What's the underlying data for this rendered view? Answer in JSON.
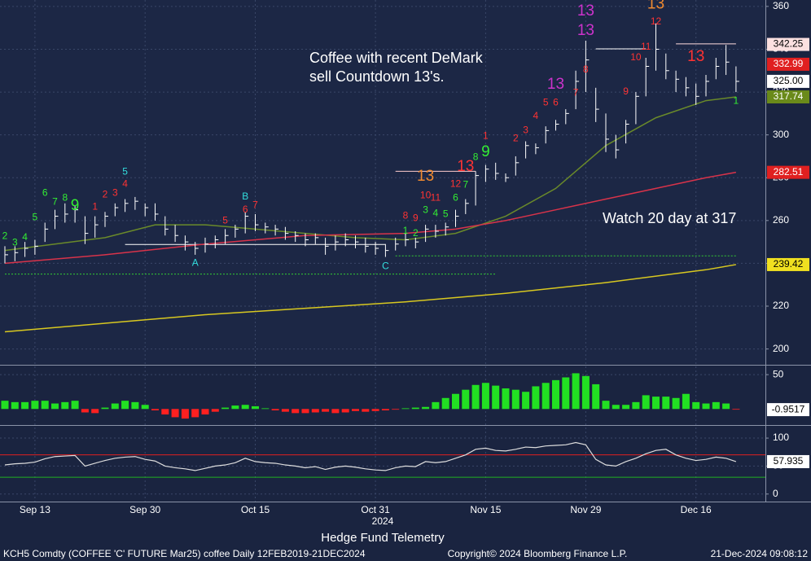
{
  "chart_data": [
    {
      "type": "ohlc",
      "color": "#ffffff",
      "ylim": [
        193,
        363
      ],
      "yticks": [
        200,
        220,
        240,
        260,
        280,
        300,
        320,
        340,
        360
      ],
      "grid": true,
      "categories": [
        null,
        null,
        null,
        "Sep 13",
        null,
        null,
        null,
        null,
        null,
        null,
        null,
        null,
        null,
        null,
        "Sep 30",
        null,
        null,
        null,
        null,
        null,
        null,
        null,
        null,
        null,
        null,
        "Oct 15",
        null,
        null,
        null,
        null,
        null,
        null,
        null,
        null,
        null,
        null,
        null,
        "Oct 31",
        null,
        null,
        null,
        null,
        null,
        null,
        null,
        null,
        null,
        null,
        "Nov 15",
        null,
        null,
        null,
        null,
        null,
        null,
        null,
        null,
        null,
        "Nov 29",
        null,
        null,
        null,
        null,
        null,
        null,
        null,
        null,
        null,
        null,
        "Dec 16",
        null,
        null,
        null,
        null
      ],
      "year_label": "2024",
      "high": [
        248,
        248,
        250,
        251,
        259,
        265,
        268,
        267,
        262,
        262,
        264,
        268,
        270,
        271,
        268,
        268,
        262,
        258,
        253,
        250,
        252,
        253,
        256,
        258,
        264,
        263,
        259,
        258,
        257,
        255,
        254,
        254,
        252,
        253,
        254,
        253,
        252,
        250,
        249,
        252,
        254,
        252,
        258,
        258,
        259,
        265,
        270,
        283,
        286,
        287,
        282,
        290,
        297,
        296,
        304,
        307,
        312,
        330,
        344,
        322,
        310,
        300,
        307,
        320,
        336,
        352,
        338,
        330,
        327,
        324,
        328,
        336,
        342,
        332
      ],
      "low": [
        240,
        241,
        243,
        244,
        250,
        256,
        259,
        259,
        249,
        252,
        257,
        262,
        264,
        265,
        262,
        260,
        253,
        250,
        246,
        244,
        245,
        247,
        249,
        252,
        254,
        255,
        254,
        253,
        251,
        250,
        248,
        249,
        244,
        246,
        248,
        247,
        245,
        244,
        243,
        246,
        248,
        247,
        250,
        252,
        253,
        257,
        263,
        267,
        278,
        279,
        278,
        281,
        289,
        291,
        296,
        302,
        305,
        312,
        320,
        306,
        292,
        289,
        296,
        305,
        318,
        330,
        326,
        320,
        318,
        314,
        318,
        326,
        328,
        320
      ],
      "close": [
        244,
        245,
        247,
        248,
        256,
        262,
        263,
        265,
        254,
        258,
        262,
        266,
        268,
        269,
        266,
        263,
        256,
        253,
        250,
        247,
        249,
        251,
        253,
        256,
        262,
        258,
        257,
        256,
        254,
        253,
        251,
        252,
        248,
        250,
        251,
        250,
        248,
        247,
        246,
        249,
        251,
        250,
        256,
        255,
        257,
        262,
        268,
        281,
        284,
        282,
        280,
        287,
        295,
        294,
        302,
        305,
        310,
        325,
        335,
        312,
        298,
        293,
        305,
        318,
        332,
        340,
        330,
        326,
        322,
        318,
        325,
        332,
        334,
        325
      ],
      "series": [
        {
          "color": "#6a8a2a",
          "x": [
            0,
            5,
            10,
            15,
            20,
            25,
            30,
            35,
            40,
            45,
            50,
            55,
            60,
            65,
            70,
            73
          ],
          "values": [
            246,
            249,
            252,
            258,
            258,
            256,
            254,
            252,
            251,
            254,
            262,
            275,
            295,
            308,
            316,
            317.74
          ]
        },
        {
          "color": "#d8334a",
          "x": [
            0,
            10,
            20,
            30,
            40,
            45,
            50,
            55,
            60,
            65,
            70,
            73
          ],
          "values": [
            240,
            244,
            249,
            253,
            254,
            256,
            260,
            265,
            270,
            275,
            280,
            282.51
          ]
        },
        {
          "color": "#d8c820",
          "x": [
            0,
            10,
            20,
            30,
            40,
            50,
            60,
            70,
            73
          ],
          "values": [
            208,
            212,
            216,
            219,
            222,
            226,
            231,
            237,
            239.42
          ]
        }
      ],
      "levels": [
        {
          "value": 342.5,
          "from": 67,
          "to": 73,
          "color": "#ffdddd",
          "dash": false
        },
        {
          "value": 340.2,
          "from": 59,
          "to": 64,
          "color": "#ffffff",
          "dash": false
        },
        {
          "value": 243.5,
          "from": 39,
          "to": 73,
          "color": "#33cc33",
          "dash": true
        },
        {
          "value": 235,
          "from": 0,
          "to": 49,
          "color": "#33cc33",
          "dash": true
        },
        {
          "value": 248.8,
          "from": 12,
          "to": 38,
          "color": "#ffffff",
          "dash": false
        },
        {
          "value": 283,
          "from": 39,
          "to": 47,
          "color": "#ffcccc",
          "dash": false
        }
      ],
      "td_counts": [
        {
          "text": "2",
          "bar": 0,
          "at": 252.6,
          "color": "#33ee33",
          "big": false
        },
        {
          "text": "3",
          "bar": 1,
          "at": 249.5,
          "color": "#33ee33",
          "big": false
        },
        {
          "text": "4",
          "bar": 2,
          "at": 252,
          "color": "#33ee33",
          "big": false
        },
        {
          "text": "5",
          "bar": 3,
          "at": 261.3,
          "color": "#33ee33",
          "big": false
        },
        {
          "text": "6",
          "bar": 4,
          "at": 272.8,
          "color": "#33ee33",
          "big": false
        },
        {
          "text": "7",
          "bar": 5,
          "at": 268.6,
          "color": "#33ee33",
          "big": false
        },
        {
          "text": "8",
          "bar": 6,
          "at": 270.5,
          "color": "#33ee33",
          "big": false
        },
        {
          "text": "9",
          "bar": 7,
          "at": 266.7,
          "color": "#33ee33",
          "big": true
        },
        {
          "text": "1",
          "bar": 9,
          "at": 266.3,
          "color": "#ff3333",
          "big": false
        },
        {
          "text": "2",
          "bar": 10,
          "at": 272,
          "color": "#ff3333",
          "big": false
        },
        {
          "text": "3",
          "bar": 11,
          "at": 272.8,
          "color": "#ff3333",
          "big": false
        },
        {
          "text": "4",
          "bar": 12,
          "at": 277,
          "color": "#ff3333",
          "big": false
        },
        {
          "text": "5",
          "bar": 12,
          "at": 282.7,
          "color": "#33dddd",
          "big": false
        },
        {
          "text": "A",
          "bar": 19,
          "at": 240,
          "color": "#33dddd",
          "big": false
        },
        {
          "text": "5",
          "bar": 22,
          "at": 259.8,
          "color": "#ff3333",
          "big": false
        },
        {
          "text": "6",
          "bar": 24,
          "at": 265,
          "color": "#ff3333",
          "big": false
        },
        {
          "text": "B",
          "bar": 24,
          "at": 271,
          "color": "#33dddd",
          "big": false
        },
        {
          "text": "7",
          "bar": 25,
          "at": 267,
          "color": "#ff3333",
          "big": false
        },
        {
          "text": "C",
          "bar": 38,
          "at": 238.5,
          "color": "#33dddd",
          "big": false
        },
        {
          "text": "8",
          "bar": 40,
          "at": 262,
          "color": "#ff3333",
          "big": false
        },
        {
          "text": "9",
          "bar": 41,
          "at": 261,
          "color": "#ff3333",
          "big": false
        },
        {
          "text": "10",
          "bar": 42,
          "at": 271.6,
          "color": "#ff3333",
          "big": false
        },
        {
          "text": "11",
          "bar": 43,
          "at": 270.5,
          "color": "#ff3333",
          "big": false
        },
        {
          "text": "13",
          "bar": 42,
          "at": 280.4,
          "color": "#f08a30",
          "big": true
        },
        {
          "text": "12",
          "bar": 45,
          "at": 277,
          "color": "#ff3333",
          "big": false
        },
        {
          "text": "13",
          "bar": 46,
          "at": 285,
          "color": "#ff3333",
          "big": true
        },
        {
          "text": "1",
          "bar": 40,
          "at": 255,
          "color": "#33ee33",
          "big": false
        },
        {
          "text": "2",
          "bar": 41,
          "at": 254,
          "color": "#33ee33",
          "big": false
        },
        {
          "text": "3",
          "bar": 42,
          "at": 264.8,
          "color": "#33ee33",
          "big": false
        },
        {
          "text": "4",
          "bar": 43,
          "at": 263.2,
          "color": "#33ee33",
          "big": false
        },
        {
          "text": "5",
          "bar": 44,
          "at": 262.9,
          "color": "#33ee33",
          "big": false
        },
        {
          "text": "6",
          "bar": 45,
          "at": 270.5,
          "color": "#33ee33",
          "big": false
        },
        {
          "text": "7",
          "bar": 46,
          "at": 276.6,
          "color": "#33ee33",
          "big": false
        },
        {
          "text": "8",
          "bar": 47,
          "at": 289.5,
          "color": "#33ee33",
          "big": false
        },
        {
          "text": "9",
          "bar": 48,
          "at": 291.8,
          "color": "#33ee33",
          "big": true
        },
        {
          "text": "1",
          "bar": 48,
          "at": 299.4,
          "color": "#ff3333",
          "big": false
        },
        {
          "text": "2",
          "bar": 51,
          "at": 298.3,
          "color": "#ff3333",
          "big": false
        },
        {
          "text": "3",
          "bar": 52,
          "at": 302,
          "color": "#ff3333",
          "big": false
        },
        {
          "text": "4",
          "bar": 53,
          "at": 308.6,
          "color": "#ff3333",
          "big": false
        },
        {
          "text": "5",
          "bar": 54,
          "at": 315,
          "color": "#ff3333",
          "big": false
        },
        {
          "text": "6",
          "bar": 55,
          "at": 315,
          "color": "#ff3333",
          "big": false
        },
        {
          "text": "7",
          "bar": 57,
          "at": 319.6,
          "color": "#ff3333",
          "big": false
        },
        {
          "text": "8",
          "bar": 58,
          "at": 330.3,
          "color": "#ff3333",
          "big": false
        },
        {
          "text": "13",
          "bar": 55,
          "at": 323.4,
          "color": "#cc33cc",
          "big": true
        },
        {
          "text": "13",
          "bar": 58,
          "at": 348.6,
          "color": "#cc33cc",
          "big": true
        },
        {
          "text": "13",
          "bar": 58,
          "at": 357.7,
          "color": "#cc33cc",
          "big": true
        },
        {
          "text": "9",
          "bar": 62,
          "at": 320,
          "color": "#ff3333",
          "big": false
        },
        {
          "text": "10",
          "bar": 63,
          "at": 336,
          "color": "#ff3333",
          "big": false
        },
        {
          "text": "11",
          "bar": 64,
          "at": 341,
          "color": "#ff3333",
          "big": false
        },
        {
          "text": "12",
          "bar": 65,
          "at": 352.8,
          "color": "#ff3333",
          "big": false
        },
        {
          "text": "13",
          "bar": 65,
          "at": 361,
          "color": "#f08a30",
          "big": true
        },
        {
          "text": "13",
          "bar": 69,
          "at": 336.4,
          "color": "#ff3333",
          "big": true
        },
        {
          "text": "1",
          "bar": 73,
          "at": 315.8,
          "color": "#33ee33",
          "big": false
        }
      ],
      "annotations": [
        "Coffee with recent DeMark",
        "sell Countdown 13's.",
        "Watch 20 day at 317"
      ],
      "price_tags": [
        {
          "value": 342.25,
          "color": "#fbe0e0",
          "text_color": "#000000"
        },
        {
          "value": 332.99,
          "color": "#e02020",
          "text_color": "#ffffff"
        },
        {
          "value": {
            "value": 325,
            "label": "325.00"
          },
          "color": "#ffffff",
          "text_color": "#000000"
        },
        {
          "value": 317.74,
          "color": "#6a8a1a",
          "text_color": "#ffffff"
        },
        {
          "value": 282.51,
          "color": "#e02020",
          "text_color": "#ffffff"
        },
        {
          "value": 239.42,
          "color": "#f0e020",
          "text_color": "#000000"
        }
      ]
    },
    {
      "type": "bar",
      "ylim": [
        -21,
        62
      ],
      "yticks": [
        50
      ],
      "grid": true,
      "pos_color": "#22e022",
      "neg_color": "#ff2020",
      "values": [
        12,
        10,
        10,
        12,
        12,
        8,
        10,
        12,
        -5,
        -6,
        2,
        8,
        12,
        10,
        6,
        -2,
        -8,
        -12,
        -14,
        -12,
        -8,
        -4,
        2,
        5,
        6,
        4,
        1,
        -2,
        -4,
        -6,
        -6,
        -5,
        -4,
        -6,
        -5,
        -3,
        -4,
        -3,
        -2,
        -1,
        1,
        2,
        3,
        10,
        16,
        22,
        28,
        35,
        38,
        34,
        30,
        28,
        25,
        33,
        38,
        42,
        46,
        52,
        48,
        36,
        12,
        6,
        6,
        10,
        20,
        18,
        18,
        16,
        22,
        10,
        8,
        10,
        8,
        -0.9517
      ],
      "last_tag": {
        "value": -0.9517,
        "color": "#ffffff",
        "text_color": "#000000"
      }
    },
    {
      "type": "line",
      "ylim": [
        -12,
        119
      ],
      "yticks": [
        0,
        50,
        100
      ],
      "grid": true,
      "color": "#dddddd",
      "levels": [
        {
          "value": 70,
          "color": "#e02020"
        },
        {
          "value": 30,
          "color": "#22b022"
        }
      ],
      "values": [
        52,
        54,
        55,
        57,
        63,
        67,
        68,
        69,
        50,
        55,
        60,
        64,
        66,
        67,
        62,
        59,
        50,
        47,
        45,
        42,
        46,
        50,
        52,
        56,
        64,
        58,
        56,
        55,
        52,
        50,
        47,
        49,
        44,
        48,
        50,
        48,
        45,
        43,
        42,
        47,
        50,
        49,
        58,
        56,
        58,
        64,
        70,
        80,
        82,
        78,
        77,
        80,
        84,
        83,
        86,
        87,
        88,
        92,
        88,
        62,
        52,
        50,
        58,
        64,
        72,
        78,
        80,
        70,
        64,
        60,
        62,
        66,
        64,
        57.935
      ],
      "last_tag": {
        "value": 57.935,
        "color": "#ffffff",
        "text_color": "#000000"
      }
    }
  ],
  "footer": {
    "ticker": "KCH5 Comdty (COFFEE 'C' FUTURE Mar25) coffee  Daily 12FEB2019-21DEC2024",
    "credit": "Hedge Fund Telemetry",
    "copyright": "Copyright© 2024 Bloomberg Finance L.P.",
    "timestamp": "21-Dec-2024 09:08:12"
  }
}
